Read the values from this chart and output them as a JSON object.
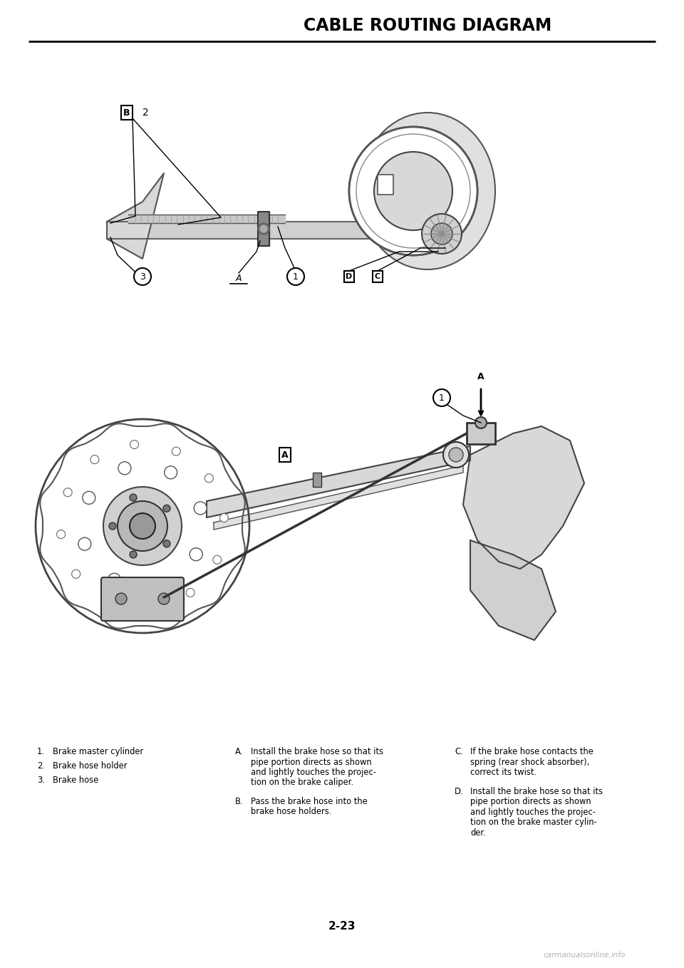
{
  "title": "CABLE ROUTING DIAGRAM",
  "page_number": "2-23",
  "watermark": "carmanualsonline.info",
  "bg_color": "#ffffff",
  "title_color": "#000000",
  "title_fontsize": 17,
  "title_bold": true,
  "numbered_items": [
    "Brake master cylinder",
    "Brake hose holder",
    "Brake hose"
  ],
  "lettered_items_col2_A": [
    "Install the brake hose so that its",
    "pipe portion directs as shown",
    "and lightly touches the projec-",
    "tion on the brake caliper."
  ],
  "lettered_items_col2_B": [
    "Pass the brake hose into the",
    "brake hose holders."
  ],
  "lettered_items_col3_C": [
    "If the brake hose contacts the",
    "spring (rear shock absorber),",
    "correct its twist."
  ],
  "lettered_items_col3_D": [
    "Install the brake hose so that its",
    "pipe portion directs as shown",
    "and lightly touches the projec-",
    "tion on the brake master cylin-",
    "der."
  ],
  "text_fontsize": 8.3,
  "label_fontsize": 9.0
}
